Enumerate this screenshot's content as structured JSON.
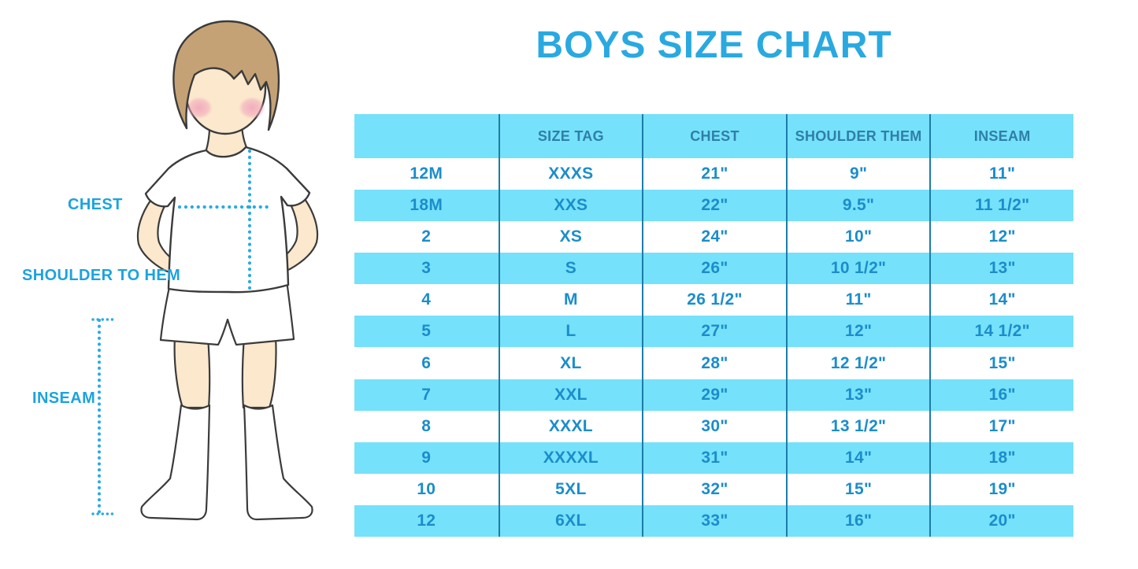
{
  "title": "BOYS SIZE CHART",
  "figure": {
    "labels": {
      "chest": "CHEST",
      "shoulder_to_hem": "SHOULDER TO HEM",
      "inseam": "INSEAM"
    }
  },
  "chart_data": {
    "type": "table",
    "title": "BOYS SIZE CHART",
    "columns": [
      "",
      "SIZE TAG",
      "CHEST",
      "SHOULDER THEM",
      "INSEAM"
    ],
    "rows": [
      [
        "12M",
        "XXXS",
        "21\"",
        "9\"",
        "11\""
      ],
      [
        "18M",
        "XXS",
        "22\"",
        "9.5\"",
        "11 1/2\""
      ],
      [
        "2",
        "XS",
        "24\"",
        "10\"",
        "12\""
      ],
      [
        "3",
        "S",
        "26\"",
        "10 1/2\"",
        "13\""
      ],
      [
        "4",
        "M",
        "26 1/2\"",
        "11\"",
        "14\""
      ],
      [
        "5",
        "L",
        "27\"",
        "12\"",
        "14 1/2\""
      ],
      [
        "6",
        "XL",
        "28\"",
        "12 1/2\"",
        "15\""
      ],
      [
        "7",
        "XXL",
        "29\"",
        "13\"",
        "16\""
      ],
      [
        "8",
        "XXXL",
        "30\"",
        "13 1/2\"",
        "17\""
      ],
      [
        "9",
        "XXXXL",
        "31\"",
        "14\"",
        "18\""
      ],
      [
        "10",
        "5XL",
        "32\"",
        "15\"",
        "19\""
      ],
      [
        "12",
        "6XL",
        "33\"",
        "16\"",
        "20\""
      ]
    ],
    "row_striping": "alternating white / light blue, starting white",
    "legend_position": "none",
    "grid": "vertical separators only"
  },
  "colors": {
    "accent_blue": "#2AA9E0",
    "table_fill": "#76E1FA",
    "table_line": "#1D7CA9",
    "header_text": "#2E7FA8",
    "cell_text": "#1B8DCB",
    "skin": "#FBE8CD",
    "hair": "#C5A276",
    "blush": "#F2A9BC",
    "outline": "#3B3B3B"
  }
}
